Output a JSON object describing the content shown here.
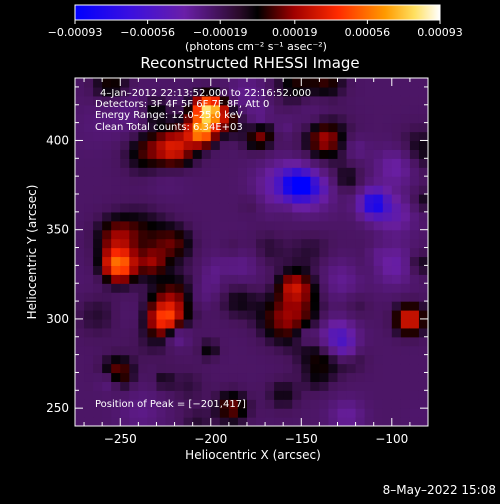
{
  "chart_data": {
    "type": "heatmap",
    "title": "Reconstructed RHESSI Image",
    "xlabel": "Heliocentric X (arcsec)",
    "ylabel": "Heliocentric Y (arcsec)",
    "xlim": [
      -275,
      -80
    ],
    "ylim": [
      240,
      435
    ],
    "xticks": [
      -250,
      -200,
      -150,
      -100
    ],
    "xtick_labels": [
      "−250",
      "−200",
      "−150",
      "−100"
    ],
    "yticks": [
      250,
      300,
      350,
      400
    ],
    "ytick_labels": [
      "250",
      "300",
      "350",
      "400"
    ],
    "colorbar": {
      "tick_labels": [
        "−0.00093",
        "−0.00056",
        "−0.00019",
        "0.00019",
        "0.00056",
        "0.00093"
      ],
      "tick_values": [
        -0.00093,
        -0.00056,
        -0.00019,
        0.00019,
        0.00056,
        0.00093
      ],
      "range": [
        -0.00093,
        0.00093
      ],
      "units": "(photons cm⁻² s⁻¹ asec⁻²)"
    },
    "annotations": {
      "time_range": "4–Jan–2012 22:13:52.000 to 22:16:52.000",
      "detectors": "Detectors: 3F 4F 5F 6F 7F 8F, Att 0",
      "energy": "Energy Range: 12.0–25.0 keV",
      "clean": "Clean     Total counts: 6.34E+03",
      "peak": "Position of Peak = [−201,417]"
    },
    "peak": [
      -201,
      417
    ],
    "colorscale": [
      "#0000ff",
      "#6a0fbf",
      "#5a1a8a",
      "#000000",
      "#c01010",
      "#ff5500",
      "#ffaa00",
      "#ffffff"
    ]
  },
  "footer": {
    "date": "8–May–2022 15:08"
  }
}
